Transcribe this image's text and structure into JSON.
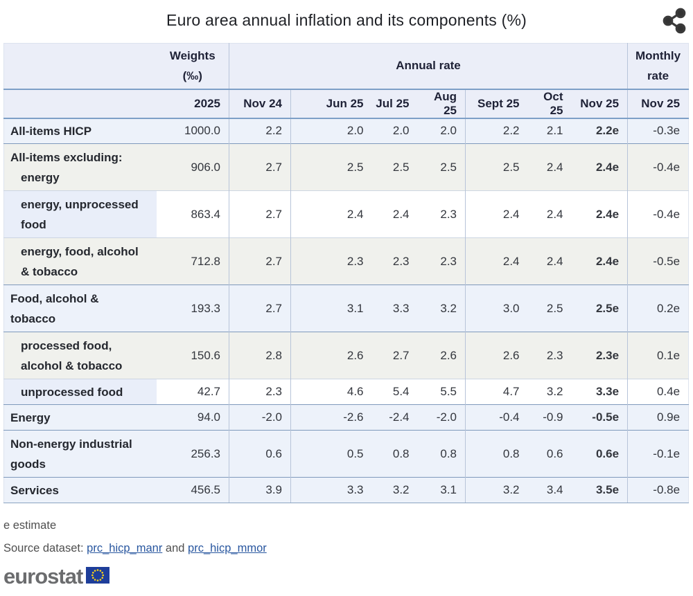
{
  "page": {
    "title": "Euro area annual inflation and its components (%)",
    "icons": {
      "share": "share-icon",
      "eu_flag": "eu-flag-icon"
    }
  },
  "chart_data": {
    "type": "table",
    "title": "Euro area annual inflation and its components (%)",
    "column_groups": {
      "weights": {
        "label": "Weights",
        "unit": "(‰)",
        "year": "2025"
      },
      "annual_rate": {
        "label": "Annual rate",
        "periods": [
          "Nov 24",
          "Jun 25",
          "Jul 25",
          "Aug 25",
          "Sept 25",
          "Oct 25",
          "Nov 25"
        ]
      },
      "monthly_rate": {
        "label_line1": "Monthly",
        "label_line2": "rate",
        "period": "Nov 25"
      }
    },
    "rows": [
      {
        "label": "All-items HICP",
        "label_lines": [
          {
            "text": "All-items HICP",
            "indent": 0
          }
        ],
        "tone": "blue",
        "weight": "1000.0",
        "annual": [
          "2.2",
          "2.0",
          "2.0",
          "2.0",
          "2.2",
          "2.1",
          "2.2e"
        ],
        "monthly": "-0.3e"
      },
      {
        "label": "All-items excluding: energy",
        "label_lines": [
          {
            "text": "All-items excluding:",
            "indent": 0
          },
          {
            "text": "energy",
            "indent": 1
          }
        ],
        "tone": "gray",
        "weight": "906.0",
        "annual": [
          "2.7",
          "2.5",
          "2.5",
          "2.5",
          "2.5",
          "2.4",
          "2.4e"
        ],
        "monthly": "-0.4e"
      },
      {
        "label": "energy, unprocessed food",
        "label_lines": [
          {
            "text": "energy, unprocessed",
            "indent": 1
          },
          {
            "text": "food",
            "indent": 1
          }
        ],
        "tone": "white",
        "weight": "863.4",
        "annual": [
          "2.7",
          "2.4",
          "2.4",
          "2.3",
          "2.4",
          "2.4",
          "2.4e"
        ],
        "monthly": "-0.4e"
      },
      {
        "label": "energy, food, alcohol & tobacco",
        "label_lines": [
          {
            "text": "energy, food, alcohol",
            "indent": 1
          },
          {
            "text": "& tobacco",
            "indent": 1
          }
        ],
        "tone": "gray",
        "weight": "712.8",
        "annual": [
          "2.7",
          "2.3",
          "2.3",
          "2.3",
          "2.4",
          "2.4",
          "2.4e"
        ],
        "monthly": "-0.5e"
      },
      {
        "label": "Food, alcohol & tobacco",
        "label_lines": [
          {
            "text": "Food, alcohol &",
            "indent": 0
          },
          {
            "text": "tobacco",
            "indent": 0
          }
        ],
        "tone": "blue",
        "weight": "193.3",
        "annual": [
          "2.7",
          "3.1",
          "3.3",
          "3.2",
          "3.0",
          "2.5",
          "2.5e"
        ],
        "monthly": "0.2e"
      },
      {
        "label": "processed food, alcohol & tobacco",
        "label_lines": [
          {
            "text": "processed food,",
            "indent": 1
          },
          {
            "text": "alcohol & tobacco",
            "indent": 1
          }
        ],
        "tone": "gray",
        "weight": "150.6",
        "annual": [
          "2.8",
          "2.6",
          "2.7",
          "2.6",
          "2.6",
          "2.3",
          "2.3e"
        ],
        "monthly": "0.1e"
      },
      {
        "label": "unprocessed food",
        "label_lines": [
          {
            "text": "unprocessed food",
            "indent": 1
          }
        ],
        "tone": "white",
        "weight": "42.7",
        "annual": [
          "2.3",
          "4.6",
          "5.4",
          "5.5",
          "4.7",
          "3.2",
          "3.3e"
        ],
        "monthly": "0.4e"
      },
      {
        "label": "Energy",
        "label_lines": [
          {
            "text": "Energy",
            "indent": 0
          }
        ],
        "tone": "blue",
        "weight": "94.0",
        "annual": [
          "-2.0",
          "-2.6",
          "-2.4",
          "-2.0",
          "-0.4",
          "-0.9",
          "-0.5e"
        ],
        "monthly": "0.9e"
      },
      {
        "label": "Non-energy industrial goods",
        "label_lines": [
          {
            "text": "Non-energy industrial",
            "indent": 0
          },
          {
            "text": "goods",
            "indent": 0
          }
        ],
        "tone": "blue",
        "weight": "256.3",
        "annual": [
          "0.6",
          "0.5",
          "0.8",
          "0.8",
          "0.8",
          "0.6",
          "0.6e"
        ],
        "monthly": "-0.1e"
      },
      {
        "label": "Services",
        "label_lines": [
          {
            "text": "Services",
            "indent": 0
          }
        ],
        "tone": "blue",
        "weight": "456.5",
        "annual": [
          "3.9",
          "3.3",
          "3.2",
          "3.1",
          "3.2",
          "3.4",
          "3.5e"
        ],
        "monthly": "-0.8e"
      }
    ],
    "notes": {
      "estimate_flag": "e",
      "estimate_meaning": "estimate"
    }
  },
  "footer": {
    "estimate_note": "e estimate",
    "source_prefix": "Source dataset:",
    "source_link_1": "prc_hicp_manr",
    "source_conjunction": "and",
    "source_link_2": "prc_hicp_mmor",
    "logo_text": "eurostat"
  },
  "colors": {
    "header_bg": "#ebeef8",
    "row_blue": "#edf2fa",
    "row_gray": "#f0f1ed",
    "row_white": "#ffffff",
    "label_highlight": "#e9eef9",
    "accent_line": "#7d9fc7",
    "separator_dark": "#7e99bb",
    "separator_light": "#ccd5e2",
    "link": "#28569f",
    "logo_gray": "#6b6c6e",
    "flag_blue": "#1e3e9a",
    "star_yellow": "#ffd617",
    "header_text": "#1e2136"
  }
}
